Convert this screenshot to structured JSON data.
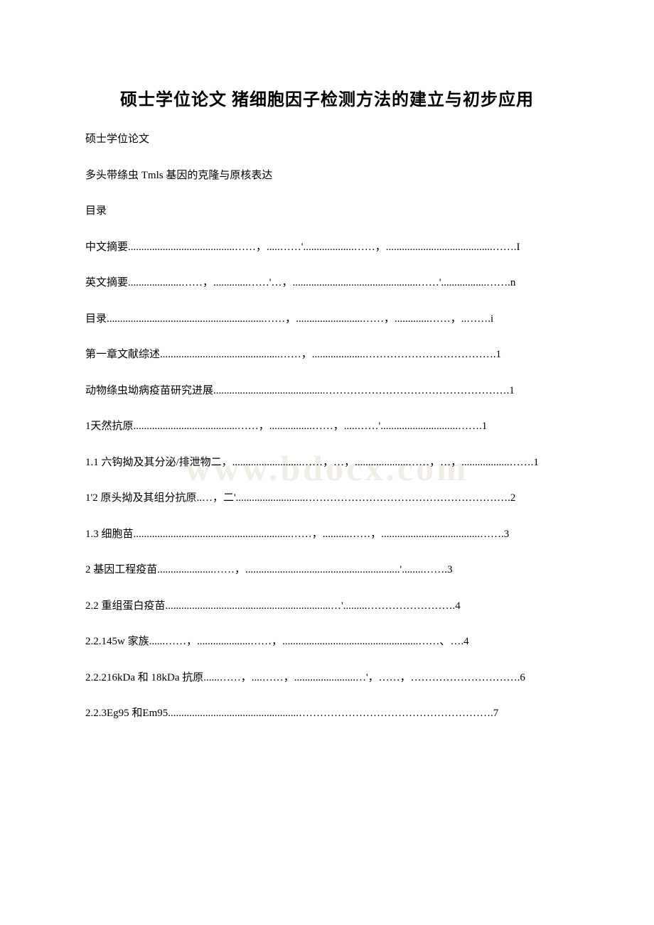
{
  "title": "硕士学位论文 猪细胞因子检测方法的建立与初步应用",
  "watermark": "www.bdocx.com",
  "lines": [
    "硕士学位论文",
    "多头带绦虫 Tmls 基因的克隆与原核表达",
    "目录",
    "中文摘要........................................……，.....……'...................……，........................................…….I",
    "英文摘要....................……，.............……'…，...............................................……'.................…….n",
    "目录...........................................................……，.........................……，.............……，..…….i",
    "第一章文献综述.............................................……，....................……………………………….1",
    "动物绦虫坳病疫苗研究进展..........................................…………………………………………….1",
    "1天然抗原.......................................……，................……，.....……'.............................…….1",
    "1.1 六钩拗及其分泌/排泄物二，..........................……，…，....................……，…，..................…….1",
    "1'2 原头拗及其组分抗原..…，二'..........................………………………………………………….2",
    "1.3 细胞苗...........................................................……，..........……，.....................................…….3",
    "2 基因工程疫苗.....................……，..........................................................'........…….3",
    "2.2 重组蛋白疫苗..............................................................…'.........…………………….4",
    "2.2.145w 家族......……，....................……，...................................................……、….4",
    "2.2.216kDa 和 18kDa 抗原......……，....……，.......................…'，……，………………………….6",
    "2.2.3Eg95 和Em95.................................................……………………………………………….7"
  ]
}
